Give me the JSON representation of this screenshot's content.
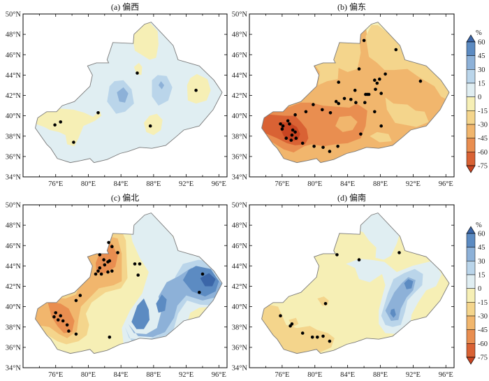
{
  "chart_data": {
    "type": "map",
    "tick_labels": {
      "lat": [
        "50°N",
        "48°N",
        "46°N",
        "44°N",
        "42°N",
        "40°N",
        "38°N",
        "36°N",
        "34°N"
      ],
      "lon": [
        "76°E",
        "80°E",
        "84°E",
        "88°E",
        "92°E",
        "96°E"
      ]
    },
    "colorbar": {
      "unit": "%",
      "levels": [
        60,
        45,
        30,
        15,
        0,
        -15,
        -30,
        -45,
        -60,
        -75
      ],
      "colors": [
        "#3b66a8",
        "#5c8bc2",
        "#8db1d8",
        "#bad5ea",
        "#e0eef2",
        "#f6efb5",
        "#f4d58c",
        "#f1b66d",
        "#e98e50",
        "#d96234",
        "#c84421"
      ]
    },
    "panels": [
      {
        "title": "(a) 偏西",
        "stations": [
          [
            86.0,
            44.2
          ],
          [
            93.2,
            42.5
          ],
          [
            81.2,
            40.3
          ],
          [
            75.9,
            39.1
          ],
          [
            76.6,
            39.4
          ],
          [
            78.2,
            37.4
          ],
          [
            87.6,
            39.0
          ]
        ]
      },
      {
        "title": "(b) 偏东",
        "stations": [
          [
            86.0,
            47.4
          ],
          [
            89.9,
            46.5
          ],
          [
            85.4,
            44.6
          ],
          [
            82.9,
            43.3
          ],
          [
            87.9,
            43.6
          ],
          [
            88.6,
            44.1
          ],
          [
            87.3,
            43.5
          ],
          [
            87.6,
            43.2
          ],
          [
            92.9,
            43.4
          ],
          [
            84.9,
            42.5
          ],
          [
            86.2,
            42.1
          ],
          [
            86.4,
            42.1
          ],
          [
            86.6,
            42.1
          ],
          [
            87.4,
            42.6
          ],
          [
            88.1,
            42.2
          ],
          [
            82.6,
            41.4
          ],
          [
            82.9,
            41.2
          ],
          [
            83.6,
            41.7
          ],
          [
            84.4,
            41.6
          ],
          [
            85.0,
            41.3
          ],
          [
            86.1,
            41.3
          ],
          [
            87.3,
            40.4
          ],
          [
            80.9,
            40.6
          ],
          [
            79.8,
            41.1
          ],
          [
            78.9,
            40.4
          ],
          [
            81.9,
            40.3
          ],
          [
            77.6,
            40.1
          ],
          [
            76.7,
            39.5
          ],
          [
            75.8,
            39.2
          ],
          [
            76.1,
            39.0
          ],
          [
            76.9,
            39.2
          ],
          [
            76.0,
            38.7
          ],
          [
            77.3,
            38.6
          ],
          [
            76.5,
            37.8
          ],
          [
            77.1,
            37.6
          ],
          [
            77.7,
            37.8
          ],
          [
            77.6,
            38.4
          ],
          [
            77.2,
            38.1
          ],
          [
            78.5,
            37.3
          ],
          [
            79.9,
            37.0
          ],
          [
            81.0,
            36.9
          ],
          [
            82.8,
            37.0
          ],
          [
            81.8,
            36.5
          ],
          [
            85.6,
            38.2
          ],
          [
            88.1,
            39.0
          ]
        ]
      },
      {
        "title": "(c) 偏北",
        "stations": [
          [
            82.5,
            46.3
          ],
          [
            82.9,
            45.9
          ],
          [
            83.6,
            45.3
          ],
          [
            81.4,
            45.1
          ],
          [
            81.9,
            44.6
          ],
          [
            82.4,
            44.4
          ],
          [
            82.0,
            44.1
          ],
          [
            82.6,
            44.5
          ],
          [
            81.2,
            43.5
          ],
          [
            80.9,
            43.2
          ],
          [
            81.6,
            43.2
          ],
          [
            82.4,
            43.4
          ],
          [
            82.9,
            43.5
          ],
          [
            81.4,
            43.8
          ],
          [
            85.7,
            44.2
          ],
          [
            86.3,
            44.2
          ],
          [
            86.1,
            43.1
          ],
          [
            94.0,
            43.2
          ],
          [
            93.6,
            41.4
          ],
          [
            79.0,
            41.1
          ],
          [
            78.5,
            40.6
          ],
          [
            76.0,
            39.4
          ],
          [
            76.6,
            39.1
          ],
          [
            75.8,
            39.0
          ],
          [
            76.3,
            38.7
          ],
          [
            76.9,
            38.6
          ],
          [
            77.4,
            38.2
          ],
          [
            77.6,
            37.6
          ],
          [
            78.5,
            37.3
          ],
          [
            82.6,
            37.0
          ]
        ]
      },
      {
        "title": "(d) 偏南",
        "stations": [
          [
            82.7,
            45.1
          ],
          [
            85.4,
            44.6
          ],
          [
            90.3,
            45.3
          ],
          [
            81.3,
            40.3
          ],
          [
            75.8,
            39.1
          ],
          [
            77.2,
            38.3
          ],
          [
            77.0,
            38.1
          ],
          [
            78.5,
            37.4
          ],
          [
            79.7,
            37.0
          ],
          [
            80.3,
            37.0
          ],
          [
            81.8,
            36.6
          ],
          [
            81.0,
            37.1
          ]
        ]
      }
    ]
  }
}
